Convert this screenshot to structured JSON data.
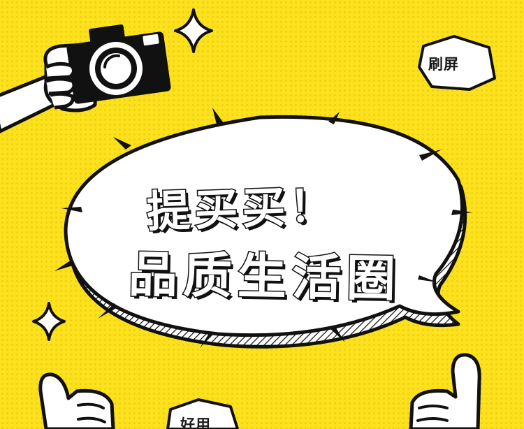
{
  "badges": {
    "top_right": "刷屏",
    "bottom": "好用"
  },
  "headline": {
    "line1": "提买买！",
    "line2": "品质生活圈"
  },
  "colors": {
    "background": "#fce21e",
    "ink": "#111111",
    "paper": "#ffffff"
  },
  "icons": [
    "camera-icon",
    "sparkle-icon",
    "thumbs-up-icon",
    "speech-bubble"
  ]
}
